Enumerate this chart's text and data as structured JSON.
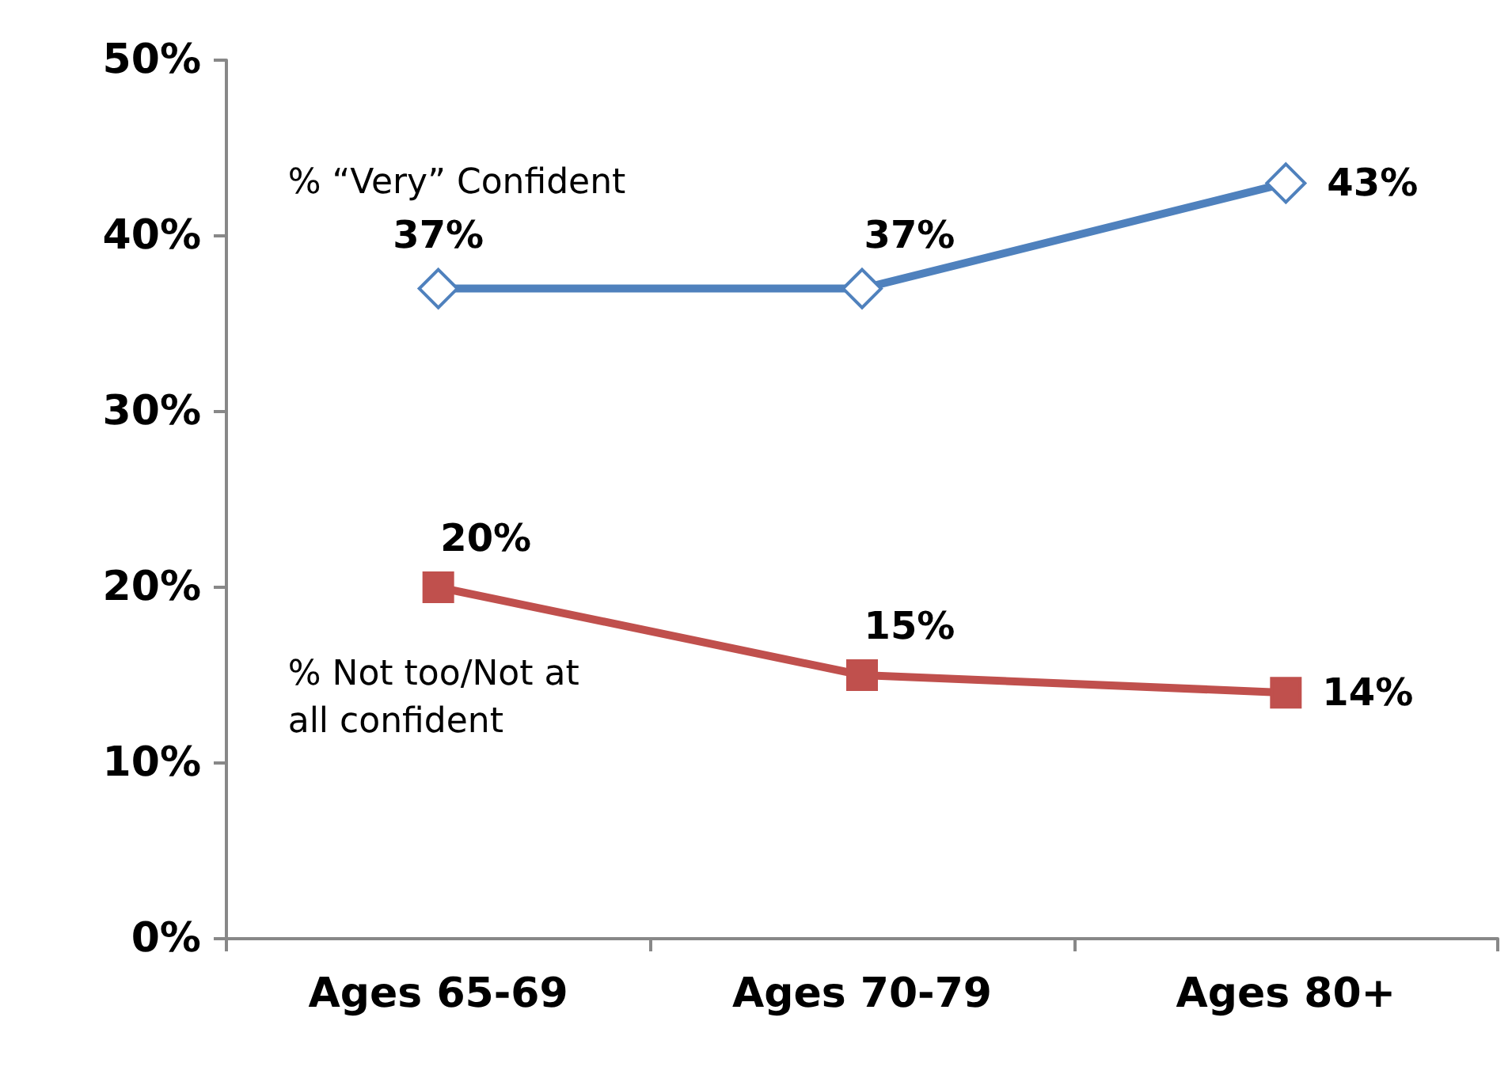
{
  "chart_data": {
    "type": "line",
    "categories": [
      "Ages 65-69",
      "Ages 70-79",
      "Ages 80+"
    ],
    "series": [
      {
        "name": "% “Very” Confident",
        "color": "#4f81bd",
        "marker": "diamond",
        "values": [
          37,
          37,
          43
        ],
        "value_labels": [
          "37%",
          "37%",
          "43%"
        ]
      },
      {
        "name": "% Not too/Not at\nall confident",
        "color": "#c0504d",
        "marker": "square",
        "values": [
          20,
          15,
          14
        ],
        "value_labels": [
          "20%",
          "15%",
          "14%"
        ]
      }
    ],
    "ylim": [
      0,
      50
    ],
    "yticks": [
      {
        "value": 0,
        "label": "0%"
      },
      {
        "value": 10,
        "label": "10%"
      },
      {
        "value": 20,
        "label": "20%"
      },
      {
        "value": 30,
        "label": "30%"
      },
      {
        "value": 40,
        "label": "40%"
      },
      {
        "value": 50,
        "label": "50%"
      }
    ],
    "grid": false,
    "legend": false
  }
}
